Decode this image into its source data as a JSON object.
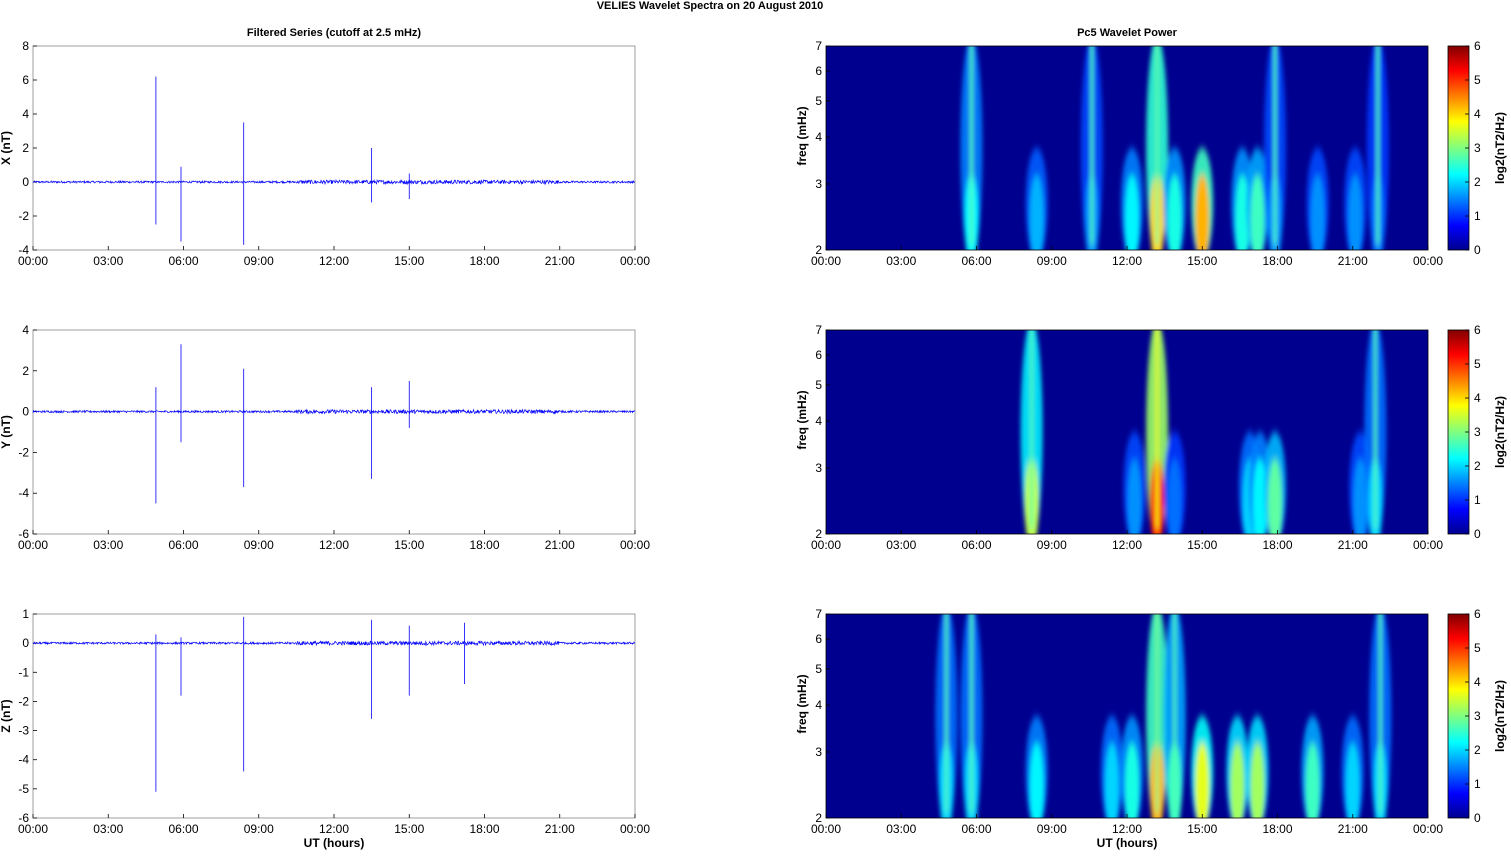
{
  "title": "VELIES Wavelet Spectra on 20 August    2010",
  "left_title": "Filtered Series (cutoff at 2.5 mHz)",
  "right_title": "Pc5 Wavelet Power",
  "xlabel": "UT (hours)",
  "time_ticks": [
    "00:00",
    "03:00",
    "06:00",
    "09:00",
    "12:00",
    "15:00",
    "18:00",
    "21:00",
    "00:00"
  ],
  "freq_label": "freq (mHz)",
  "freq_ticks": [
    "2",
    "3",
    "4",
    "5",
    "6",
    "7"
  ],
  "colorbar_label": "log2(nT2/Hz)",
  "colorbar_ticks": [
    "0",
    "1",
    "2",
    "3",
    "4",
    "5",
    "6"
  ],
  "colors": {
    "trace": "#0000ff",
    "background_low": "#00008f"
  },
  "chart_data": [
    {
      "type": "line",
      "ylabel": "X (nT)",
      "xlim": [
        0,
        24
      ],
      "ylim": [
        -4,
        8
      ],
      "yticks": [
        "-4",
        "-2",
        "0",
        "2",
        "4",
        "6",
        "8"
      ],
      "spikes": [
        {
          "t": 4.9,
          "y": [
            -2.5,
            6.2
          ]
        },
        {
          "t": 5.9,
          "y": [
            -3.5,
            0.9
          ]
        },
        {
          "t": 8.4,
          "y": [
            -3.7,
            3.5
          ]
        },
        {
          "t": 13.5,
          "y": [
            -1.2,
            2.0
          ]
        },
        {
          "t": 15.0,
          "y": [
            -1.0,
            0.5
          ]
        }
      ]
    },
    {
      "type": "line",
      "ylabel": "Y (nT)",
      "xlim": [
        0,
        24
      ],
      "ylim": [
        -6,
        4
      ],
      "yticks": [
        "-6",
        "-4",
        "-2",
        "0",
        "2",
        "4"
      ],
      "spikes": [
        {
          "t": 4.9,
          "y": [
            -4.5,
            1.2
          ]
        },
        {
          "t": 5.9,
          "y": [
            -1.5,
            3.3
          ]
        },
        {
          "t": 8.4,
          "y": [
            -3.7,
            2.1
          ]
        },
        {
          "t": 13.5,
          "y": [
            -3.3,
            1.2
          ]
        },
        {
          "t": 15.0,
          "y": [
            -0.8,
            1.5
          ]
        }
      ]
    },
    {
      "type": "line",
      "ylabel": "Z (nT)",
      "xlim": [
        0,
        24
      ],
      "ylim": [
        -6,
        1
      ],
      "yticks": [
        "-6",
        "-5",
        "-4",
        "-3",
        "-2",
        "-1",
        "0",
        "1"
      ],
      "spikes": [
        {
          "t": 4.9,
          "y": [
            -5.1,
            0.3
          ]
        },
        {
          "t": 5.9,
          "y": [
            -1.8,
            0.2
          ]
        },
        {
          "t": 8.4,
          "y": [
            -4.4,
            0.9
          ]
        },
        {
          "t": 13.5,
          "y": [
            -2.6,
            0.8
          ]
        },
        {
          "t": 15.0,
          "y": [
            -1.8,
            0.6
          ]
        },
        {
          "t": 17.2,
          "y": [
            -1.4,
            0.7
          ]
        }
      ]
    },
    {
      "type": "heatmap",
      "ylabel": "freq (mHz)",
      "xlim": [
        0,
        24
      ],
      "ylim": [
        2,
        7
      ],
      "scale": "log",
      "clim": [
        0,
        6
      ],
      "blobs": [
        {
          "t": 5.8,
          "level": 2.2,
          "full": true
        },
        {
          "t": 8.4,
          "level": 1.8,
          "full": false
        },
        {
          "t": 10.6,
          "level": 1.6,
          "full": true
        },
        {
          "t": 12.2,
          "level": 2.2,
          "full": false
        },
        {
          "t": 13.2,
          "level": 4.0,
          "full": true
        },
        {
          "t": 13.9,
          "level": 2.4,
          "full": false
        },
        {
          "t": 15.0,
          "level": 4.2,
          "full": false
        },
        {
          "t": 16.6,
          "level": 2.4,
          "full": false
        },
        {
          "t": 17.2,
          "level": 2.6,
          "full": false
        },
        {
          "t": 17.9,
          "level": 1.6,
          "full": true
        },
        {
          "t": 19.6,
          "level": 1.6,
          "full": false
        },
        {
          "t": 21.1,
          "level": 1.6,
          "full": false
        },
        {
          "t": 22.0,
          "level": 1.4,
          "full": true
        }
      ]
    },
    {
      "type": "heatmap",
      "ylabel": "freq (mHz)",
      "xlim": [
        0,
        24
      ],
      "ylim": [
        2,
        7
      ],
      "scale": "log",
      "clim": [
        0,
        6
      ],
      "blobs": [
        {
          "t": 8.2,
          "level": 3.4,
          "full": true
        },
        {
          "t": 12.3,
          "level": 1.6,
          "full": false
        },
        {
          "t": 13.2,
          "level": 5.2,
          "full": true
        },
        {
          "t": 13.9,
          "level": 1.4,
          "full": false
        },
        {
          "t": 16.9,
          "level": 2.0,
          "full": false
        },
        {
          "t": 17.3,
          "level": 2.2,
          "full": false
        },
        {
          "t": 17.9,
          "level": 2.8,
          "full": false
        },
        {
          "t": 21.3,
          "level": 1.6,
          "full": false
        },
        {
          "t": 21.9,
          "level": 2.0,
          "full": true
        }
      ]
    },
    {
      "type": "heatmap",
      "ylabel": "freq (mHz)",
      "xlim": [
        0,
        24
      ],
      "ylim": [
        2,
        7
      ],
      "scale": "log",
      "clim": [
        0,
        6
      ],
      "blobs": [
        {
          "t": 4.8,
          "level": 2.0,
          "full": true
        },
        {
          "t": 5.8,
          "level": 2.0,
          "full": true
        },
        {
          "t": 8.4,
          "level": 2.2,
          "full": false
        },
        {
          "t": 11.4,
          "level": 2.0,
          "full": false
        },
        {
          "t": 12.2,
          "level": 2.4,
          "full": false
        },
        {
          "t": 13.2,
          "level": 4.2,
          "full": true
        },
        {
          "t": 13.9,
          "level": 2.6,
          "full": true
        },
        {
          "t": 15.0,
          "level": 3.6,
          "full": false
        },
        {
          "t": 16.4,
          "level": 3.2,
          "full": false
        },
        {
          "t": 17.2,
          "level": 3.2,
          "full": false
        },
        {
          "t": 19.4,
          "level": 2.6,
          "full": false
        },
        {
          "t": 21.0,
          "level": 2.0,
          "full": false
        },
        {
          "t": 22.1,
          "level": 2.0,
          "full": true
        }
      ]
    }
  ]
}
